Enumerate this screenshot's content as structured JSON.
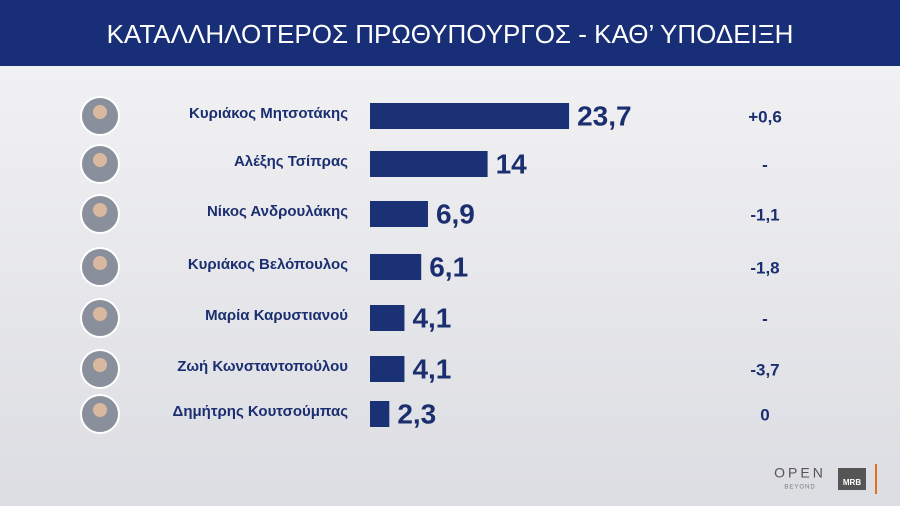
{
  "chart_data": {
    "type": "bar",
    "orientation": "horizontal",
    "title": "ΚΑΤΑΛΛΗΛΟΤΕΡΟΣ  ΠΡΩΘΥΠΟΥΡΓΟΣ - ΚΑΘ’ ΥΠΟΔΕΙΞΗ",
    "categories": [
      "Κυριάκος Μητσοτάκης",
      "Αλέξης Τσίπρας",
      "Νίκος Ανδρουλάκης",
      "Κυριάκος Βελόπουλος",
      "Μαρία Καρυστιανού",
      "Ζωή Κωνσταντοπούλου",
      "Δημήτρης Κουτσούμπας"
    ],
    "values": [
      23.7,
      14,
      6.9,
      6.1,
      4.1,
      4.1,
      2.3
    ],
    "value_labels": [
      "23,7",
      "14",
      "6,9",
      "6,1",
      "4,1",
      "4,1",
      "2,3"
    ],
    "changes": [
      "+0,6",
      "-",
      "-1,1",
      "-1,8",
      "-",
      "-3,7",
      "0"
    ],
    "color": "#1b3176"
  },
  "brand": {
    "channel": "OPEN",
    "tagline": "BEYOND",
    "pollster": "MRB"
  }
}
